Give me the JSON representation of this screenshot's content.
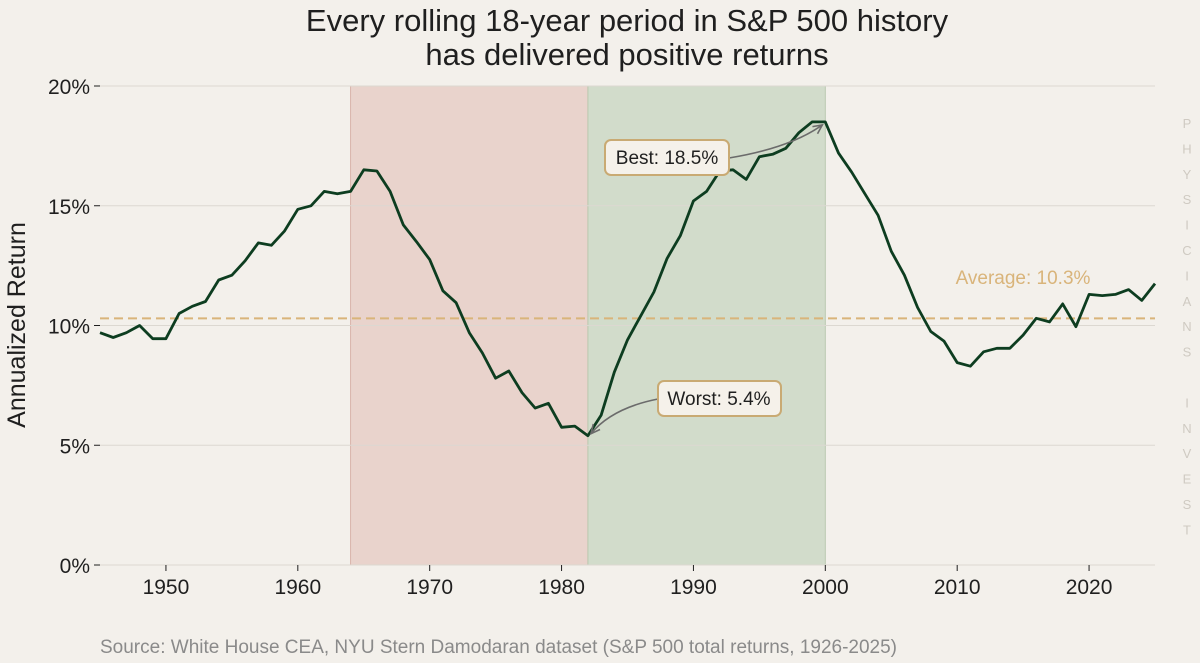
{
  "colors": {
    "background": "#f3f0eb",
    "line": "#0d3d20",
    "grid": "#dcd8d1",
    "average": "#d9b47a",
    "worst_region": "#e9d3cc",
    "best_region": "#d2dccb",
    "box_border": "#c9aa73",
    "box_fill": "#f5f1ea",
    "arrow": "#6b6b6b",
    "source": "#8a8a8a",
    "watermark": "#cfcac2"
  },
  "chart_data": {
    "type": "line",
    "title": [
      "Every rolling 18-year period in S&P 500 history",
      "has delivered positive returns"
    ],
    "ylabel": "Annualized Return",
    "xlabel": "",
    "xlim": [
      1945,
      2025
    ],
    "ylim": [
      0,
      20
    ],
    "x_ticks": [
      1950,
      1960,
      1970,
      1980,
      1990,
      2000,
      2010,
      2020
    ],
    "y_ticks": [
      0,
      5,
      10,
      15,
      20
    ],
    "y_tick_labels": [
      "0%",
      "5%",
      "10%",
      "15%",
      "20%"
    ],
    "grid": "horizontal",
    "series": [
      {
        "x": [
          1945,
          1946,
          1947,
          1948,
          1949,
          1950,
          1951,
          1952,
          1953,
          1954,
          1955,
          1956,
          1957,
          1958,
          1959,
          1960,
          1961,
          1962,
          1963,
          1964,
          1965,
          1966,
          1967,
          1968,
          1969,
          1970,
          1971,
          1972,
          1973,
          1974,
          1975,
          1976,
          1977,
          1978,
          1979,
          1980,
          1981,
          1982,
          1983,
          1984,
          1985,
          1986,
          1987,
          1988,
          1989,
          1990,
          1991,
          1992,
          1993,
          1994,
          1995,
          1996,
          1997,
          1998,
          1999,
          2000,
          2001,
          2002,
          2003,
          2004,
          2005,
          2006,
          2007,
          2008,
          2009,
          2010,
          2011,
          2012,
          2013,
          2014,
          2015,
          2016,
          2017,
          2018,
          2019,
          2020,
          2021,
          2022,
          2023,
          2024,
          2025
        ],
        "values": [
          9.7,
          9.5,
          9.7,
          10.0,
          9.45,
          9.45,
          10.5,
          10.8,
          11.0,
          11.9,
          12.1,
          12.7,
          13.45,
          13.35,
          13.95,
          14.85,
          15.0,
          15.6,
          15.5,
          15.6,
          16.5,
          16.45,
          15.6,
          14.2,
          13.5,
          12.75,
          11.45,
          10.95,
          9.7,
          8.85,
          7.8,
          8.1,
          7.2,
          6.55,
          6.75,
          5.75,
          5.8,
          5.4,
          6.25,
          8.05,
          9.4,
          10.4,
          11.4,
          12.8,
          13.75,
          15.2,
          15.6,
          16.45,
          16.5,
          16.1,
          17.05,
          17.15,
          17.4,
          18.05,
          18.5,
          18.5,
          17.2,
          16.4,
          15.5,
          14.6,
          13.1,
          12.1,
          10.75,
          9.75,
          9.35,
          8.45,
          8.3,
          8.9,
          9.05,
          9.05,
          9.6,
          10.3,
          10.15,
          10.9,
          9.95,
          11.3,
          11.25,
          11.3,
          11.5,
          11.05,
          11.75
        ]
      }
    ],
    "shaded_regions": [
      {
        "start": 1964,
        "end": 1982,
        "label": "worst"
      },
      {
        "start": 1982,
        "end": 2000,
        "label": "best"
      }
    ],
    "average": {
      "value": 10.3,
      "label": "Average: 10.3%"
    },
    "annotations": [
      {
        "label": "Best: 18.5%",
        "x": 2000,
        "y": 18.5
      },
      {
        "label": "Worst: 5.4%",
        "x": 1982,
        "y": 5.4
      }
    ]
  },
  "source": "Source: White House CEA, NYU Stern Damodaran dataset (S&P 500 total returns, 1926-2025)",
  "watermark": [
    "P",
    "H",
    "Y",
    "S",
    "I",
    "C",
    "I",
    "A",
    "N",
    "S",
    "",
    "I",
    "N",
    "V",
    "E",
    "S",
    "T"
  ]
}
